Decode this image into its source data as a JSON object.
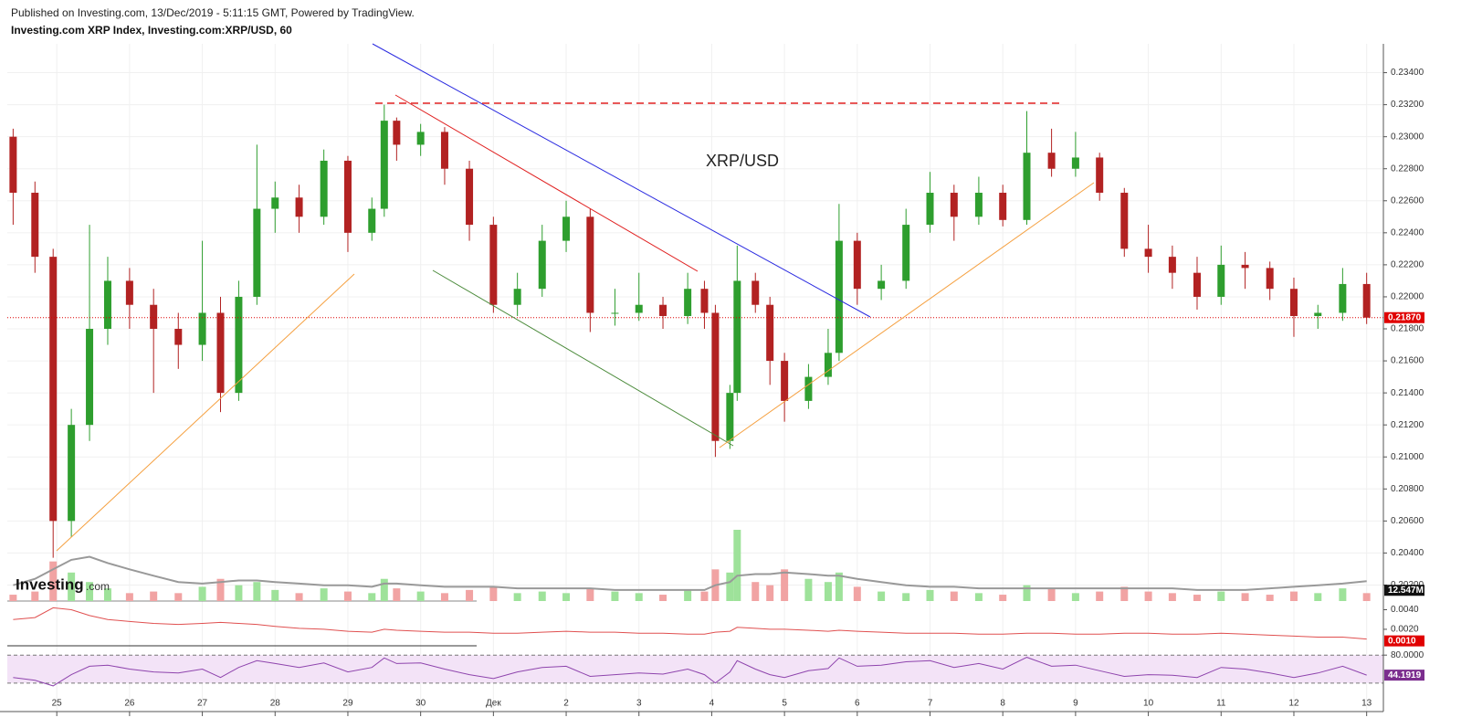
{
  "logo": {
    "name": "Investing",
    "suffix": ".com"
  },
  "chart_data": {
    "type": "candlestick",
    "subtitle": "Published on Investing.com, 13/Dec/2019 - 5:11:15 GMT, Powered by TradingView.",
    "title": "Investing.com XRP Index, Investing.com:XRP/USD, 60",
    "annotation": "XRP/USD",
    "up_color": "#2e9e2e",
    "down_color": "#b22222",
    "grid": true,
    "xlim": [
      -0.68,
      18.23
    ],
    "xticks": [
      {
        "value": 0,
        "label": "25"
      },
      {
        "value": 1,
        "label": "26"
      },
      {
        "value": 2,
        "label": "27"
      },
      {
        "value": 3,
        "label": "28"
      },
      {
        "value": 4,
        "label": "29"
      },
      {
        "value": 5,
        "label": "30"
      },
      {
        "value": 6,
        "label": "Дек"
      },
      {
        "value": 7,
        "label": "2"
      },
      {
        "value": 8,
        "label": "3"
      },
      {
        "value": 9,
        "label": "4"
      },
      {
        "value": 10,
        "label": "5"
      },
      {
        "value": 11,
        "label": "6"
      },
      {
        "value": 12,
        "label": "7"
      },
      {
        "value": 13,
        "label": "8"
      },
      {
        "value": 14,
        "label": "9"
      },
      {
        "value": 15,
        "label": "10"
      },
      {
        "value": 16,
        "label": "11"
      },
      {
        "value": 17,
        "label": "12"
      },
      {
        "value": 18,
        "label": "13"
      }
    ],
    "ylim": [
      0.201,
      0.2358
    ],
    "yticks": [
      {
        "value": 0.202,
        "label": "0.20200"
      },
      {
        "value": 0.204,
        "label": "0.20400"
      },
      {
        "value": 0.206,
        "label": "0.20600"
      },
      {
        "value": 0.208,
        "label": "0.20800"
      },
      {
        "value": 0.21,
        "label": "0.21000"
      },
      {
        "value": 0.212,
        "label": "0.21200"
      },
      {
        "value": 0.214,
        "label": "0.21400"
      },
      {
        "value": 0.216,
        "label": "0.21600"
      },
      {
        "value": 0.218,
        "label": "0.21800"
      },
      {
        "value": 0.22,
        "label": "0.22000"
      },
      {
        "value": 0.222,
        "label": "0.22200"
      },
      {
        "value": 0.224,
        "label": "0.22400"
      },
      {
        "value": 0.226,
        "label": "0.22600"
      },
      {
        "value": 0.228,
        "label": "0.22800"
      },
      {
        "value": 0.23,
        "label": "0.23000"
      },
      {
        "value": 0.232,
        "label": "0.23200"
      },
      {
        "value": 0.234,
        "label": "0.23400"
      }
    ],
    "x": [
      -0.6,
      -0.3,
      -0.05,
      0.2,
      0.45,
      0.7,
      1,
      1.33,
      1.67,
      2,
      2.25,
      2.5,
      2.75,
      3,
      3.33,
      3.67,
      4,
      4.33,
      4.5,
      4.67,
      5,
      5.33,
      5.67,
      6,
      6.33,
      6.67,
      7,
      7.33,
      7.67,
      8,
      8.33,
      8.67,
      8.9,
      9.05,
      9.25,
      9.35,
      9.6,
      9.8,
      10,
      10.33,
      10.6,
      10.75,
      11,
      11.33,
      11.67,
      12,
      12.33,
      12.67,
      13,
      13.33,
      13.67,
      14,
      14.33,
      14.67,
      15,
      15.33,
      15.67,
      16,
      16.33,
      16.67,
      17,
      17.33,
      17.67,
      18
    ],
    "open": [
      0.23,
      0.2265,
      0.2225,
      0.206,
      0.212,
      0.218,
      0.221,
      0.2195,
      0.218,
      0.217,
      0.219,
      0.214,
      0.22,
      0.2255,
      0.2262,
      0.225,
      0.2285,
      0.224,
      0.2255,
      0.231,
      0.2295,
      0.2303,
      0.228,
      0.2245,
      0.2195,
      0.2205,
      0.2235,
      0.225,
      0.219,
      0.219,
      0.2195,
      0.2188,
      0.2205,
      0.219,
      0.211,
      0.214,
      0.221,
      0.2195,
      0.216,
      0.2135,
      0.215,
      0.2165,
      0.2235,
      0.2205,
      0.221,
      0.2245,
      0.2265,
      0.225,
      0.2265,
      0.2248,
      0.229,
      0.228,
      0.2287,
      0.2265,
      0.223,
      0.2225,
      0.2215,
      0.22,
      0.222,
      0.2218,
      0.2205,
      0.2188,
      0.219,
      0.2208
    ],
    "high": [
      0.2305,
      0.2272,
      0.223,
      0.213,
      0.2245,
      0.2225,
      0.2218,
      0.2205,
      0.219,
      0.2235,
      0.22,
      0.221,
      0.2295,
      0.2272,
      0.227,
      0.2292,
      0.2288,
      0.2262,
      0.232,
      0.2312,
      0.2308,
      0.2306,
      0.2285,
      0.225,
      0.2215,
      0.2245,
      0.226,
      0.2255,
      0.2205,
      0.2215,
      0.22,
      0.2215,
      0.221,
      0.2195,
      0.2145,
      0.2232,
      0.2215,
      0.22,
      0.2165,
      0.2158,
      0.218,
      0.2258,
      0.224,
      0.222,
      0.2255,
      0.2278,
      0.227,
      0.2275,
      0.227,
      0.2316,
      0.2305,
      0.2303,
      0.229,
      0.2268,
      0.2245,
      0.2232,
      0.2225,
      0.2232,
      0.2228,
      0.2222,
      0.2212,
      0.2195,
      0.2218,
      0.2215
    ],
    "low": [
      0.2245,
      0.2215,
      0.2037,
      0.205,
      0.211,
      0.217,
      0.218,
      0.214,
      0.2155,
      0.216,
      0.2128,
      0.2135,
      0.2195,
      0.224,
      0.224,
      0.2245,
      0.2228,
      0.2235,
      0.225,
      0.2285,
      0.2288,
      0.227,
      0.2235,
      0.219,
      0.2188,
      0.22,
      0.2228,
      0.2178,
      0.2182,
      0.2185,
      0.218,
      0.2183,
      0.218,
      0.21,
      0.2105,
      0.2135,
      0.219,
      0.2145,
      0.2122,
      0.213,
      0.2145,
      0.216,
      0.2195,
      0.2198,
      0.2205,
      0.224,
      0.2235,
      0.2245,
      0.2244,
      0.2245,
      0.2275,
      0.2275,
      0.226,
      0.2225,
      0.2215,
      0.2205,
      0.2192,
      0.2195,
      0.2205,
      0.2198,
      0.2175,
      0.218,
      0.2185,
      0.2183
    ],
    "close": [
      0.2265,
      0.2225,
      0.206,
      0.212,
      0.218,
      0.221,
      0.2195,
      0.218,
      0.217,
      0.219,
      0.214,
      0.22,
      0.2255,
      0.2262,
      0.225,
      0.2285,
      0.224,
      0.2255,
      0.231,
      0.2295,
      0.2303,
      0.228,
      0.2245,
      0.2195,
      0.2205,
      0.2235,
      0.225,
      0.219,
      0.219,
      0.2195,
      0.2188,
      0.2205,
      0.219,
      0.211,
      0.214,
      0.221,
      0.2195,
      0.216,
      0.2135,
      0.215,
      0.2165,
      0.2235,
      0.2205,
      0.221,
      0.2245,
      0.2265,
      0.225,
      0.2265,
      0.2248,
      0.229,
      0.228,
      0.2287,
      0.2265,
      0.223,
      0.2225,
      0.2215,
      0.22,
      0.222,
      0.2218,
      0.2205,
      0.2188,
      0.219,
      0.2208,
      0.2187
    ],
    "last_label": "0.21870",
    "volume": {
      "ylim": [
        0,
        60
      ],
      "up_color": "#9ee29a",
      "down_color": "#f1a3a3",
      "ma_color": "#999999",
      "values": [
        4,
        6,
        25,
        18,
        12,
        8,
        5,
        6,
        5,
        9,
        14,
        10,
        12,
        7,
        5,
        8,
        6,
        5,
        14,
        8,
        6,
        5,
        7,
        9,
        5,
        6,
        5,
        8,
        6,
        5,
        4,
        7,
        6,
        20,
        18,
        45,
        12,
        10,
        20,
        14,
        12,
        18,
        9,
        6,
        5,
        7,
        6,
        5,
        4,
        10,
        8,
        5,
        6,
        9,
        6,
        5,
        4,
        6,
        5,
        4,
        6,
        5,
        8,
        5
      ],
      "ma": [
        10,
        14,
        20,
        26,
        28,
        24,
        20,
        16,
        12,
        11,
        12,
        13,
        13,
        12,
        11,
        10,
        10,
        9,
        11,
        11,
        10,
        9,
        9,
        9,
        8,
        8,
        8,
        8,
        7,
        7,
        7,
        7,
        7,
        10,
        12,
        16,
        17,
        17,
        18,
        17,
        16,
        16,
        14,
        12,
        10,
        9,
        9,
        8,
        8,
        8,
        8,
        8,
        8,
        8,
        8,
        8,
        7,
        7,
        7,
        8,
        9,
        10,
        11,
        12.547
      ],
      "ma_label": "12.547M"
    },
    "indicator": {
      "color": "#e05050",
      "ylim": [
        0.0005,
        0.0047
      ],
      "yticks": [
        {
          "value": 0.004,
          "label": "0.0040"
        },
        {
          "value": 0.002,
          "label": "0.0020"
        }
      ],
      "values": [
        0.003,
        0.0032,
        0.0042,
        0.004,
        0.0034,
        0.003,
        0.0028,
        0.0026,
        0.0025,
        0.0026,
        0.0027,
        0.0026,
        0.0025,
        0.0023,
        0.0021,
        0.002,
        0.0018,
        0.0017,
        0.002,
        0.0019,
        0.0018,
        0.0017,
        0.0017,
        0.0016,
        0.0016,
        0.0017,
        0.0018,
        0.0017,
        0.0017,
        0.0016,
        0.0016,
        0.0015,
        0.0015,
        0.0017,
        0.0018,
        0.0022,
        0.0021,
        0.002,
        0.002,
        0.0019,
        0.0018,
        0.0019,
        0.0018,
        0.0017,
        0.0016,
        0.0016,
        0.0016,
        0.0015,
        0.0015,
        0.0016,
        0.0016,
        0.0015,
        0.0015,
        0.0016,
        0.0016,
        0.0015,
        0.0015,
        0.0016,
        0.0015,
        0.0014,
        0.0013,
        0.0012,
        0.0012,
        0.001
      ],
      "last_label": "0.0010"
    },
    "rsi": {
      "color": "#8e44ad",
      "ylim": [
        15,
        95
      ],
      "band": [
        30,
        80
      ],
      "yticks": [
        {
          "value": 80,
          "label": "80.0000"
        }
      ],
      "values": [
        40,
        35,
        25,
        45,
        60,
        62,
        55,
        50,
        48,
        55,
        40,
        58,
        70,
        65,
        58,
        66,
        50,
        58,
        75,
        65,
        66,
        55,
        45,
        38,
        50,
        58,
        60,
        42,
        45,
        48,
        46,
        55,
        45,
        30,
        50,
        70,
        55,
        45,
        40,
        52,
        56,
        75,
        60,
        62,
        68,
        70,
        58,
        65,
        55,
        76,
        60,
        62,
        52,
        42,
        45,
        44,
        40,
        58,
        55,
        48,
        40,
        48,
        60,
        44.1919
      ]
    }
  }
}
